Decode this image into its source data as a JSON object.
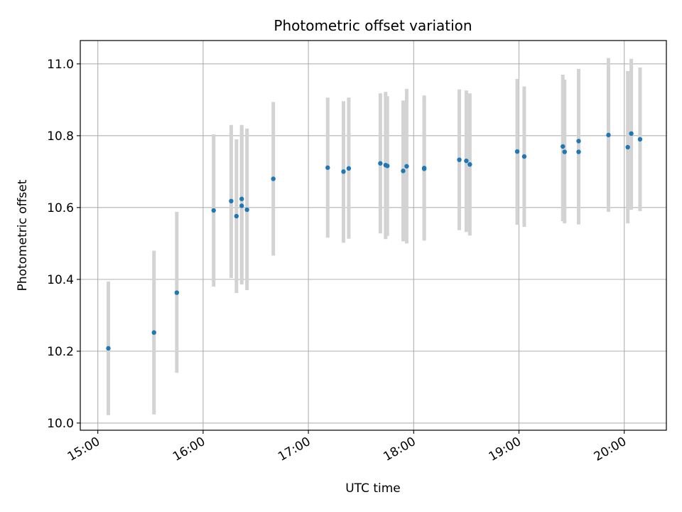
{
  "chart_data": {
    "type": "scatter",
    "title": "Photometric offset variation",
    "xlabel": "UTC time",
    "ylabel": "Photometric offset",
    "xlim": [
      "14:50",
      "20:24"
    ],
    "ylim": [
      9.98,
      11.065
    ],
    "x_ticks": [
      "15:00",
      "16:00",
      "17:00",
      "18:00",
      "19:00",
      "20:00"
    ],
    "y_ticks": [
      10.0,
      10.2,
      10.4,
      10.6,
      10.8,
      11.0
    ],
    "y_tick_labels": [
      "10.0",
      "10.2",
      "10.4",
      "10.6",
      "10.8",
      "11.0"
    ],
    "grid": true,
    "colors": {
      "points": "#1f77b4",
      "errorbars": "#d3d3d3",
      "grid": "#b0b0b0"
    },
    "points": [
      {
        "x": "15:06",
        "y": 10.208,
        "lo": 10.022,
        "hi": 10.394
      },
      {
        "x": "15:32",
        "y": 10.252,
        "lo": 10.024,
        "hi": 10.48
      },
      {
        "x": "15:45",
        "y": 10.363,
        "lo": 10.14,
        "hi": 10.588
      },
      {
        "x": "16:06",
        "y": 10.592,
        "lo": 10.38,
        "hi": 10.804
      },
      {
        "x": "16:16",
        "y": 10.618,
        "lo": 10.404,
        "hi": 10.83
      },
      {
        "x": "16:19",
        "y": 10.576,
        "lo": 10.362,
        "hi": 10.79
      },
      {
        "x": "16:22",
        "y": 10.605,
        "lo": 10.386,
        "hi": 10.83
      },
      {
        "x": "16:22",
        "y": 10.624,
        "lo": 10.41,
        "hi": 10.826
      },
      {
        "x": "16:25",
        "y": 10.594,
        "lo": 10.37,
        "hi": 10.82
      },
      {
        "x": "16:40",
        "y": 10.68,
        "lo": 10.466,
        "hi": 10.894
      },
      {
        "x": "17:11",
        "y": 10.711,
        "lo": 10.516,
        "hi": 10.906
      },
      {
        "x": "17:20",
        "y": 10.7,
        "lo": 10.502,
        "hi": 10.896
      },
      {
        "x": "17:23",
        "y": 10.709,
        "lo": 10.513,
        "hi": 10.906
      },
      {
        "x": "17:41",
        "y": 10.723,
        "lo": 10.528,
        "hi": 10.918
      },
      {
        "x": "17:44",
        "y": 10.718,
        "lo": 10.512,
        "hi": 10.922
      },
      {
        "x": "17:45",
        "y": 10.716,
        "lo": 10.521,
        "hi": 10.91
      },
      {
        "x": "17:54",
        "y": 10.702,
        "lo": 10.506,
        "hi": 10.898
      },
      {
        "x": "17:56",
        "y": 10.715,
        "lo": 10.5,
        "hi": 10.93
      },
      {
        "x": "18:06",
        "y": 10.71,
        "lo": 10.508,
        "hi": 10.912
      },
      {
        "x": "18:06",
        "y": 10.708,
        "lo": 10.51,
        "hi": 10.906
      },
      {
        "x": "18:26",
        "y": 10.733,
        "lo": 10.537,
        "hi": 10.929
      },
      {
        "x": "18:30",
        "y": 10.73,
        "lo": 10.532,
        "hi": 10.926
      },
      {
        "x": "18:32",
        "y": 10.72,
        "lo": 10.522,
        "hi": 10.918
      },
      {
        "x": "18:59",
        "y": 10.756,
        "lo": 10.552,
        "hi": 10.958
      },
      {
        "x": "19:03",
        "y": 10.742,
        "lo": 10.546,
        "hi": 10.937
      },
      {
        "x": "19:25",
        "y": 10.77,
        "lo": 10.562,
        "hi": 10.97
      },
      {
        "x": "19:26",
        "y": 10.755,
        "lo": 10.556,
        "hi": 10.956
      },
      {
        "x": "19:34",
        "y": 10.755,
        "lo": 10.553,
        "hi": 10.957
      },
      {
        "x": "19:34",
        "y": 10.785,
        "lo": 10.586,
        "hi": 10.986
      },
      {
        "x": "19:51",
        "y": 10.802,
        "lo": 10.588,
        "hi": 11.016
      },
      {
        "x": "20:02",
        "y": 10.768,
        "lo": 10.556,
        "hi": 10.98
      },
      {
        "x": "20:04",
        "y": 10.806,
        "lo": 10.594,
        "hi": 11.014
      },
      {
        "x": "20:09",
        "y": 10.79,
        "lo": 10.59,
        "hi": 10.99
      }
    ]
  }
}
